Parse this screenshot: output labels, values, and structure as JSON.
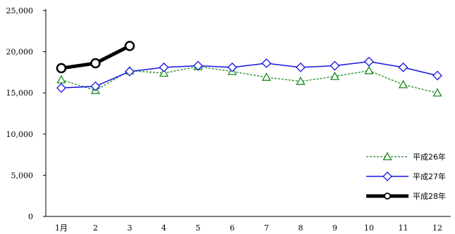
{
  "chart_data": {
    "type": "line",
    "title": "",
    "xlabel": "",
    "ylabel": "",
    "categories": [
      "1月",
      "2",
      "3",
      "4",
      "5",
      "6",
      "7",
      "8",
      "9",
      "10",
      "11",
      "12"
    ],
    "y_ticks": [
      "0",
      "5,000",
      "10,000",
      "15,000",
      "20,000",
      "25,000"
    ],
    "ylim": [
      0,
      25000
    ],
    "grid": false,
    "legend_position": "bottom-right",
    "series": [
      {
        "name": "平成26年",
        "values": [
          16600,
          15300,
          17700,
          17400,
          18200,
          17600,
          16900,
          16400,
          17000,
          17700,
          16000,
          15000
        ],
        "color": "#1a8a1a",
        "marker": "triangle",
        "line_style": "dashed"
      },
      {
        "name": "平成27年",
        "values": [
          15600,
          15800,
          17600,
          18100,
          18300,
          18100,
          18600,
          18100,
          18300,
          18800,
          18100,
          17100
        ],
        "color": "#1414e0",
        "marker": "diamond",
        "line_style": "solid"
      },
      {
        "name": "平成28年",
        "values": [
          18000,
          18600,
          20700,
          null,
          null,
          null,
          null,
          null,
          null,
          null,
          null,
          null
        ],
        "color": "#000000",
        "marker": "circle",
        "line_style": "thick"
      }
    ]
  }
}
